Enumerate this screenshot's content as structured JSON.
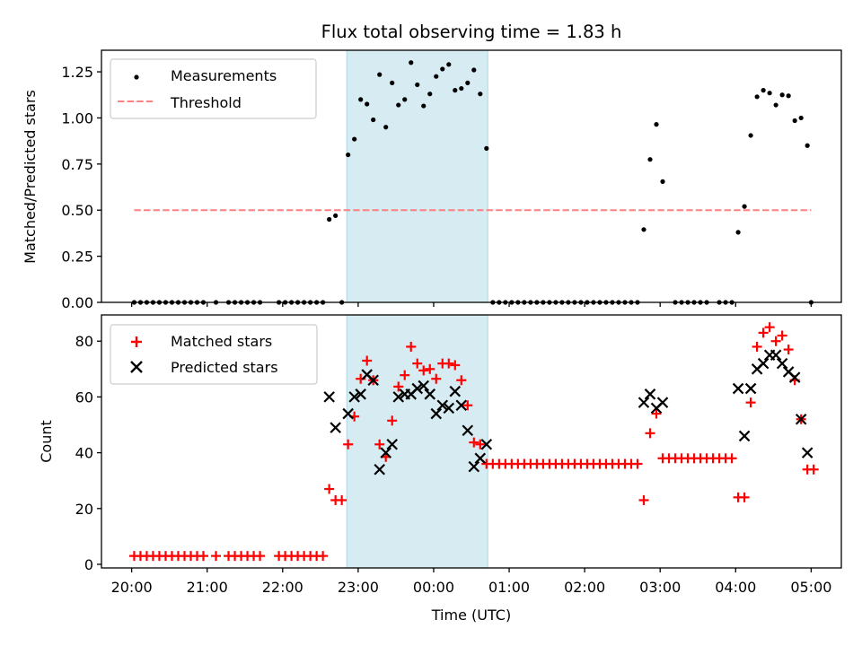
{
  "chart_data": [
    {
      "type": "scatter",
      "panel": "top",
      "title": "Flux total observing time = 1.83 h",
      "xlabel": "",
      "ylabel": "Matched/Predicted stars",
      "ylim": [
        0.0,
        1.367
      ],
      "yticks": [
        0.0,
        0.25,
        0.5,
        0.75,
        1.0,
        1.25
      ],
      "ytick_labels": [
        "0.00",
        "0.25",
        "0.50",
        "0.75",
        "1.00",
        "1.25"
      ],
      "grid": false,
      "legend_position": "top-left",
      "shaded_interval": {
        "start": "22:51",
        "end": "00:43",
        "color": "#add8e6"
      },
      "series": [
        {
          "name": "Measurements",
          "marker": "dot",
          "color": "#000000",
          "points": [
            [
              "20:02",
              0
            ],
            [
              "20:07",
              0
            ],
            [
              "20:12",
              0
            ],
            [
              "20:17",
              0
            ],
            [
              "20:22",
              0
            ],
            [
              "20:27",
              0
            ],
            [
              "20:32",
              0
            ],
            [
              "20:37",
              0
            ],
            [
              "20:42",
              0
            ],
            [
              "20:47",
              0
            ],
            [
              "20:52",
              0
            ],
            [
              "20:57",
              0
            ],
            [
              "21:07",
              0
            ],
            [
              "21:17",
              0
            ],
            [
              "21:22",
              0
            ],
            [
              "21:27",
              0
            ],
            [
              "21:32",
              0
            ],
            [
              "21:37",
              0
            ],
            [
              "21:42",
              0
            ],
            [
              "21:57",
              0
            ],
            [
              "22:02",
              0
            ],
            [
              "22:07",
              0
            ],
            [
              "22:12",
              0
            ],
            [
              "22:17",
              0
            ],
            [
              "22:22",
              0
            ],
            [
              "22:27",
              0
            ],
            [
              "22:32",
              0
            ],
            [
              "22:37",
              0.45
            ],
            [
              "22:42",
              0.47
            ],
            [
              "22:47",
              0
            ],
            [
              "22:52",
              0.8
            ],
            [
              "22:57",
              0.885
            ],
            [
              "23:02",
              1.1
            ],
            [
              "23:07",
              1.075
            ],
            [
              "23:12",
              0.99
            ],
            [
              "23:17",
              1.235
            ],
            [
              "23:22",
              0.95
            ],
            [
              "23:27",
              1.19
            ],
            [
              "23:32",
              1.07
            ],
            [
              "23:37",
              1.1
            ],
            [
              "23:42",
              1.3
            ],
            [
              "23:47",
              1.18
            ],
            [
              "23:52",
              1.065
            ],
            [
              "23:57",
              1.13
            ],
            [
              "00:02",
              1.225
            ],
            [
              "00:07",
              1.265
            ],
            [
              "00:12",
              1.29
            ],
            [
              "00:17",
              1.15
            ],
            [
              "00:22",
              1.16
            ],
            [
              "00:27",
              1.19
            ],
            [
              "00:32",
              1.26
            ],
            [
              "00:37",
              1.13
            ],
            [
              "00:42",
              0.835
            ],
            [
              "00:47",
              0
            ],
            [
              "00:52",
              0
            ],
            [
              "00:57",
              0
            ],
            [
              "01:02",
              0
            ],
            [
              "01:07",
              0
            ],
            [
              "01:12",
              0
            ],
            [
              "01:17",
              0
            ],
            [
              "01:22",
              0
            ],
            [
              "01:27",
              0
            ],
            [
              "01:32",
              0
            ],
            [
              "01:37",
              0
            ],
            [
              "01:42",
              0
            ],
            [
              "01:47",
              0
            ],
            [
              "01:52",
              0
            ],
            [
              "01:57",
              0
            ],
            [
              "02:02",
              0
            ],
            [
              "02:07",
              0
            ],
            [
              "02:12",
              0
            ],
            [
              "02:17",
              0
            ],
            [
              "02:22",
              0
            ],
            [
              "02:27",
              0
            ],
            [
              "02:32",
              0
            ],
            [
              "02:37",
              0
            ],
            [
              "02:42",
              0
            ],
            [
              "02:47",
              0.395
            ],
            [
              "02:52",
              0.775
            ],
            [
              "02:57",
              0.965
            ],
            [
              "03:02",
              0.655
            ],
            [
              "03:12",
              0
            ],
            [
              "03:17",
              0
            ],
            [
              "03:22",
              0
            ],
            [
              "03:27",
              0
            ],
            [
              "03:32",
              0
            ],
            [
              "03:37",
              0
            ],
            [
              "03:47",
              0
            ],
            [
              "03:52",
              0
            ],
            [
              "03:57",
              0
            ],
            [
              "04:02",
              0.38
            ],
            [
              "04:07",
              0.52
            ],
            [
              "04:12",
              0.905
            ],
            [
              "04:17",
              1.115
            ],
            [
              "04:22",
              1.15
            ],
            [
              "04:27",
              1.135
            ],
            [
              "04:32",
              1.07
            ],
            [
              "04:37",
              1.125
            ],
            [
              "04:42",
              1.12
            ],
            [
              "04:47",
              0.985
            ],
            [
              "04:52",
              1.0
            ],
            [
              "04:57",
              0.85
            ],
            [
              "05:00",
              0
            ]
          ]
        },
        {
          "name": "Threshold",
          "type": "line",
          "style": "dashed",
          "color": "#ff8080",
          "points": [
            [
              "20:02",
              0.5
            ],
            [
              "05:00",
              0.5
            ]
          ]
        }
      ]
    },
    {
      "type": "scatter",
      "panel": "bottom",
      "title": "",
      "xlabel": "Time (UTC)",
      "ylabel": "Count",
      "ylim": [
        -1.3,
        89.4
      ],
      "yticks": [
        0,
        20,
        40,
        60,
        80
      ],
      "ytick_labels": [
        "0",
        "20",
        "40",
        "60",
        "80"
      ],
      "xlim": [
        "19:36",
        "05:24"
      ],
      "xticks": [
        "20:00",
        "21:00",
        "22:00",
        "23:00",
        "00:00",
        "01:00",
        "02:00",
        "03:00",
        "04:00",
        "05:00"
      ],
      "grid": false,
      "legend_position": "top-left",
      "shaded_interval": {
        "start": "22:51",
        "end": "00:43",
        "color": "#add8e6"
      },
      "series": [
        {
          "name": "Matched stars",
          "marker": "plus",
          "color": "#ff0000",
          "points": [
            [
              "20:02",
              3
            ],
            [
              "20:07",
              3
            ],
            [
              "20:12",
              3
            ],
            [
              "20:17",
              3
            ],
            [
              "20:22",
              3
            ],
            [
              "20:27",
              3
            ],
            [
              "20:32",
              3
            ],
            [
              "20:37",
              3
            ],
            [
              "20:42",
              3
            ],
            [
              "20:47",
              3
            ],
            [
              "20:52",
              3
            ],
            [
              "20:57",
              3
            ],
            [
              "21:07",
              3
            ],
            [
              "21:17",
              3
            ],
            [
              "21:22",
              3
            ],
            [
              "21:27",
              3
            ],
            [
              "21:32",
              3
            ],
            [
              "21:37",
              3
            ],
            [
              "21:42",
              3
            ],
            [
              "21:57",
              3
            ],
            [
              "22:02",
              3
            ],
            [
              "22:07",
              3
            ],
            [
              "22:12",
              3
            ],
            [
              "22:17",
              3
            ],
            [
              "22:22",
              3
            ],
            [
              "22:27",
              3
            ],
            [
              "22:32",
              3
            ],
            [
              "22:37",
              27
            ],
            [
              "22:42",
              23
            ],
            [
              "22:47",
              23
            ],
            [
              "22:52",
              43
            ],
            [
              "22:57",
              53
            ],
            [
              "23:02",
              66.5
            ],
            [
              "23:07",
              73
            ],
            [
              "23:12",
              66
            ],
            [
              "23:17",
              43
            ],
            [
              "23:22",
              38.5
            ],
            [
              "23:27",
              51.5
            ],
            [
              "23:32",
              63.7
            ],
            [
              "23:37",
              67.8
            ],
            [
              "23:42",
              78
            ],
            [
              "23:47",
              72
            ],
            [
              "23:52",
              69.5
            ],
            [
              "23:57",
              70
            ],
            [
              "00:02",
              66.5
            ],
            [
              "00:07",
              72
            ],
            [
              "00:12",
              72
            ],
            [
              "00:17",
              71.4
            ],
            [
              "00:22",
              66
            ],
            [
              "00:27",
              57
            ],
            [
              "00:32",
              43.7
            ],
            [
              "00:37",
              43
            ],
            [
              "00:42",
              36
            ],
            [
              "00:47",
              36
            ],
            [
              "00:52",
              36
            ],
            [
              "00:57",
              36
            ],
            [
              "01:02",
              36
            ],
            [
              "01:07",
              36
            ],
            [
              "01:12",
              36
            ],
            [
              "01:17",
              36
            ],
            [
              "01:22",
              36
            ],
            [
              "01:27",
              36
            ],
            [
              "01:32",
              36
            ],
            [
              "01:37",
              36
            ],
            [
              "01:42",
              36
            ],
            [
              "01:47",
              36
            ],
            [
              "01:52",
              36
            ],
            [
              "01:57",
              36
            ],
            [
              "02:02",
              36
            ],
            [
              "02:07",
              36
            ],
            [
              "02:12",
              36
            ],
            [
              "02:17",
              36
            ],
            [
              "02:22",
              36
            ],
            [
              "02:27",
              36
            ],
            [
              "02:32",
              36
            ],
            [
              "02:37",
              36
            ],
            [
              "02:42",
              36
            ],
            [
              "02:47",
              23
            ],
            [
              "02:52",
              47
            ],
            [
              "02:57",
              54
            ],
            [
              "03:02",
              38
            ],
            [
              "03:07",
              38
            ],
            [
              "03:12",
              38
            ],
            [
              "03:17",
              38
            ],
            [
              "03:22",
              38
            ],
            [
              "03:27",
              38
            ],
            [
              "03:32",
              38
            ],
            [
              "03:37",
              38
            ],
            [
              "03:42",
              38
            ],
            [
              "03:47",
              38
            ],
            [
              "03:52",
              38
            ],
            [
              "03:57",
              38
            ],
            [
              "04:02",
              24
            ],
            [
              "04:07",
              24
            ],
            [
              "04:12",
              58
            ],
            [
              "04:17",
              78
            ],
            [
              "04:22",
              83
            ],
            [
              "04:27",
              85
            ],
            [
              "04:32",
              80
            ],
            [
              "04:37",
              82
            ],
            [
              "04:42",
              77
            ],
            [
              "04:47",
              66
            ],
            [
              "04:52",
              52
            ],
            [
              "04:57",
              34
            ],
            [
              "05:02",
              34
            ]
          ]
        },
        {
          "name": "Predicted stars",
          "marker": "x",
          "color": "#000000",
          "points": [
            [
              "22:37",
              60
            ],
            [
              "22:42",
              49
            ],
            [
              "22:52",
              54
            ],
            [
              "22:57",
              60
            ],
            [
              "23:02",
              61
            ],
            [
              "23:07",
              68
            ],
            [
              "23:12",
              66
            ],
            [
              "23:17",
              34
            ],
            [
              "23:22",
              40
            ],
            [
              "23:27",
              43
            ],
            [
              "23:32",
              60
            ],
            [
              "23:37",
              61
            ],
            [
              "23:42",
              61
            ],
            [
              "23:47",
              63
            ],
            [
              "23:52",
              64
            ],
            [
              "23:57",
              61
            ],
            [
              "00:02",
              54
            ],
            [
              "00:07",
              57
            ],
            [
              "00:12",
              56
            ],
            [
              "00:17",
              62
            ],
            [
              "00:22",
              57
            ],
            [
              "00:27",
              48
            ],
            [
              "00:32",
              35
            ],
            [
              "00:37",
              38
            ],
            [
              "00:42",
              43
            ],
            [
              "02:47",
              58
            ],
            [
              "02:52",
              61
            ],
            [
              "02:57",
              56
            ],
            [
              "03:02",
              58
            ],
            [
              "04:02",
              63
            ],
            [
              "04:07",
              46
            ],
            [
              "04:12",
              63
            ],
            [
              "04:17",
              70
            ],
            [
              "04:22",
              72
            ],
            [
              "04:27",
              75
            ],
            [
              "04:32",
              75
            ],
            [
              "04:37",
              72
            ],
            [
              "04:42",
              69
            ],
            [
              "04:47",
              67
            ],
            [
              "04:52",
              52
            ],
            [
              "04:57",
              40
            ]
          ]
        }
      ]
    }
  ]
}
